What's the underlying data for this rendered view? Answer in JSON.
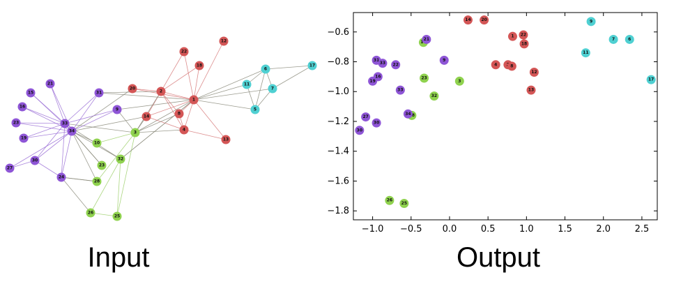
{
  "captions": {
    "input": "Input",
    "output": "Output"
  },
  "colors": {
    "purple": "#8e55d6",
    "red": "#d45656",
    "green": "#8fd24e",
    "cyan": "#4fd0d2",
    "edge_purple": "#9a6fd6",
    "edge_red": "#d67878",
    "edge_green": "#9ccf6a",
    "edge_mixed": "#8a8a7a"
  },
  "graph": {
    "nodes": [
      {
        "id": "1",
        "group": "red"
      },
      {
        "id": "2",
        "group": "red"
      },
      {
        "id": "4",
        "group": "red"
      },
      {
        "id": "8",
        "group": "red"
      },
      {
        "id": "12",
        "group": "red"
      },
      {
        "id": "13",
        "group": "red"
      },
      {
        "id": "14",
        "group": "red"
      },
      {
        "id": "18",
        "group": "red"
      },
      {
        "id": "20",
        "group": "red"
      },
      {
        "id": "22",
        "group": "red"
      },
      {
        "id": "6",
        "group": "cyan"
      },
      {
        "id": "7",
        "group": "cyan"
      },
      {
        "id": "5",
        "group": "cyan"
      },
      {
        "id": "11",
        "group": "cyan"
      },
      {
        "id": "17",
        "group": "cyan"
      },
      {
        "id": "3",
        "group": "green"
      },
      {
        "id": "10",
        "group": "green"
      },
      {
        "id": "23",
        "group": "green"
      },
      {
        "id": "32",
        "group": "green"
      },
      {
        "id": "28",
        "group": "green"
      },
      {
        "id": "26",
        "group": "green"
      },
      {
        "id": "25",
        "group": "green"
      },
      {
        "id": "33",
        "group": "purple"
      },
      {
        "id": "34",
        "group": "purple"
      },
      {
        "id": "31",
        "group": "purple"
      },
      {
        "id": "9",
        "group": "purple"
      },
      {
        "id": "21",
        "group": "purple"
      },
      {
        "id": "15",
        "group": "purple"
      },
      {
        "id": "16",
        "group": "purple"
      },
      {
        "id": "23b",
        "label": "23",
        "group": "purple"
      },
      {
        "id": "19",
        "group": "purple"
      },
      {
        "id": "27",
        "group": "purple"
      },
      {
        "id": "30",
        "group": "purple"
      },
      {
        "id": "24",
        "group": "purple"
      }
    ],
    "edges": [
      [
        "1",
        "2"
      ],
      [
        "1",
        "4"
      ],
      [
        "1",
        "8"
      ],
      [
        "1",
        "12"
      ],
      [
        "1",
        "13"
      ],
      [
        "1",
        "14"
      ],
      [
        "1",
        "18"
      ],
      [
        "1",
        "20"
      ],
      [
        "1",
        "22"
      ],
      [
        "1",
        "5"
      ],
      [
        "1",
        "6"
      ],
      [
        "1",
        "7"
      ],
      [
        "1",
        "11"
      ],
      [
        "1",
        "9"
      ],
      [
        "1",
        "31"
      ],
      [
        "1",
        "3"
      ],
      [
        "1",
        "32"
      ],
      [
        "2",
        "4"
      ],
      [
        "2",
        "8"
      ],
      [
        "2",
        "14"
      ],
      [
        "2",
        "18"
      ],
      [
        "2",
        "20"
      ],
      [
        "2",
        "22"
      ],
      [
        "2",
        "3"
      ],
      [
        "2",
        "31"
      ],
      [
        "4",
        "8"
      ],
      [
        "4",
        "13"
      ],
      [
        "4",
        "14"
      ],
      [
        "4",
        "3"
      ],
      [
        "3",
        "8"
      ],
      [
        "3",
        "9"
      ],
      [
        "3",
        "10"
      ],
      [
        "3",
        "14"
      ],
      [
        "3",
        "28"
      ],
      [
        "3",
        "33"
      ],
      [
        "3",
        "25"
      ],
      [
        "6",
        "7"
      ],
      [
        "6",
        "11"
      ],
      [
        "6",
        "17"
      ],
      [
        "7",
        "17"
      ],
      [
        "7",
        "5"
      ],
      [
        "5",
        "11"
      ],
      [
        "6",
        "5"
      ],
      [
        "32",
        "26"
      ],
      [
        "32",
        "25"
      ],
      [
        "32",
        "34"
      ],
      [
        "32",
        "33"
      ],
      [
        "32",
        "1"
      ],
      [
        "28",
        "24"
      ],
      [
        "28",
        "34"
      ],
      [
        "26",
        "24"
      ],
      [
        "26",
        "25"
      ],
      [
        "10",
        "34"
      ],
      [
        "23",
        "33"
      ],
      [
        "23",
        "34"
      ],
      [
        "34",
        "33"
      ],
      [
        "34",
        "31"
      ],
      [
        "34",
        "9"
      ],
      [
        "34",
        "21"
      ],
      [
        "34",
        "15"
      ],
      [
        "34",
        "16"
      ],
      [
        "34",
        "23b"
      ],
      [
        "34",
        "19"
      ],
      [
        "34",
        "27"
      ],
      [
        "34",
        "30"
      ],
      [
        "34",
        "24"
      ],
      [
        "34",
        "14"
      ],
      [
        "34",
        "20"
      ],
      [
        "33",
        "9"
      ],
      [
        "33",
        "31"
      ],
      [
        "33",
        "21"
      ],
      [
        "33",
        "15"
      ],
      [
        "33",
        "16"
      ],
      [
        "33",
        "23b"
      ],
      [
        "33",
        "19"
      ],
      [
        "33",
        "30"
      ],
      [
        "33",
        "24"
      ],
      [
        "30",
        "27"
      ],
      [
        "30",
        "24"
      ],
      [
        "24",
        "28"
      ]
    ]
  },
  "chart_data": {
    "type": "scatter",
    "xlim": [
      -1.25,
      2.7
    ],
    "ylim": [
      -1.86,
      -0.47
    ],
    "xticks": [
      -1.0,
      -0.5,
      0.0,
      0.5,
      1.0,
      1.5,
      2.0,
      2.5
    ],
    "xtick_labels": [
      "−1.0",
      "−0.5",
      "0.0",
      "0.5",
      "1.0",
      "1.5",
      "2.0",
      "2.5"
    ],
    "yticks": [
      -0.6,
      -0.8,
      -1.0,
      -1.2,
      -1.4,
      -1.6,
      -1.8
    ],
    "ytick_labels": [
      "−0.6",
      "−0.8",
      "−1.0",
      "−1.2",
      "−1.4",
      "−1.6",
      "−1.8"
    ],
    "points": [
      {
        "label": "14",
        "x": 0.24,
        "y": -0.52,
        "group": "red"
      },
      {
        "label": "20",
        "x": 0.45,
        "y": -0.52,
        "group": "red"
      },
      {
        "label": "1",
        "x": 0.82,
        "y": -0.63,
        "group": "red"
      },
      {
        "label": "22",
        "x": 0.96,
        "y": -0.62,
        "group": "red"
      },
      {
        "label": "18",
        "x": 0.97,
        "y": -0.68,
        "group": "red"
      },
      {
        "label": "4",
        "x": 0.6,
        "y": -0.82,
        "group": "red"
      },
      {
        "label": "2",
        "x": 0.76,
        "y": -0.82,
        "group": "red"
      },
      {
        "label": "8",
        "x": 0.81,
        "y": -0.83,
        "group": "red"
      },
      {
        "label": "12",
        "x": 1.1,
        "y": -0.87,
        "group": "red"
      },
      {
        "label": "13",
        "x": 1.06,
        "y": -0.99,
        "group": "red"
      },
      {
        "label": "9",
        "x": 1.84,
        "y": -0.53,
        "group": "cyan"
      },
      {
        "label": "7",
        "x": 2.13,
        "y": -0.65,
        "group": "cyan"
      },
      {
        "label": "6",
        "x": 2.34,
        "y": -0.65,
        "group": "cyan"
      },
      {
        "label": "11",
        "x": 1.77,
        "y": -0.74,
        "group": "cyan"
      },
      {
        "label": "17",
        "x": 2.62,
        "y": -0.92,
        "group": "cyan"
      },
      {
        "label": "16",
        "x": -0.34,
        "y": -0.67,
        "group": "green"
      },
      {
        "label": "23",
        "x": -0.33,
        "y": -0.91,
        "group": "green"
      },
      {
        "label": "3",
        "x": 0.13,
        "y": -0.93,
        "group": "green"
      },
      {
        "label": "32",
        "x": -0.2,
        "y": -1.03,
        "group": "green"
      },
      {
        "label": "28",
        "x": -0.49,
        "y": -1.16,
        "group": "green"
      },
      {
        "label": "26",
        "x": -0.78,
        "y": -1.73,
        "group": "green"
      },
      {
        "label": "25",
        "x": -0.59,
        "y": -1.75,
        "group": "green"
      },
      {
        "label": "21",
        "x": -0.3,
        "y": -0.65,
        "group": "purple"
      },
      {
        "label": "9",
        "x": -0.07,
        "y": -0.79,
        "group": "purple"
      },
      {
        "label": "31",
        "x": -0.95,
        "y": -0.79,
        "group": "purple"
      },
      {
        "label": "33",
        "x": -0.87,
        "y": -0.81,
        "group": "purple"
      },
      {
        "label": "22",
        "x": -0.7,
        "y": -0.82,
        "group": "purple"
      },
      {
        "label": "16",
        "x": -0.93,
        "y": -0.9,
        "group": "purple"
      },
      {
        "label": "19",
        "x": -1.0,
        "y": -0.93,
        "group": "purple"
      },
      {
        "label": "33",
        "x": -0.64,
        "y": -0.99,
        "group": "purple"
      },
      {
        "label": "34",
        "x": -0.54,
        "y": -1.15,
        "group": "purple"
      },
      {
        "label": "27",
        "x": -1.09,
        "y": -1.17,
        "group": "purple"
      },
      {
        "label": "30",
        "x": -0.95,
        "y": -1.21,
        "group": "purple"
      },
      {
        "label": "30",
        "x": -1.17,
        "y": -1.26,
        "group": "purple"
      }
    ]
  }
}
